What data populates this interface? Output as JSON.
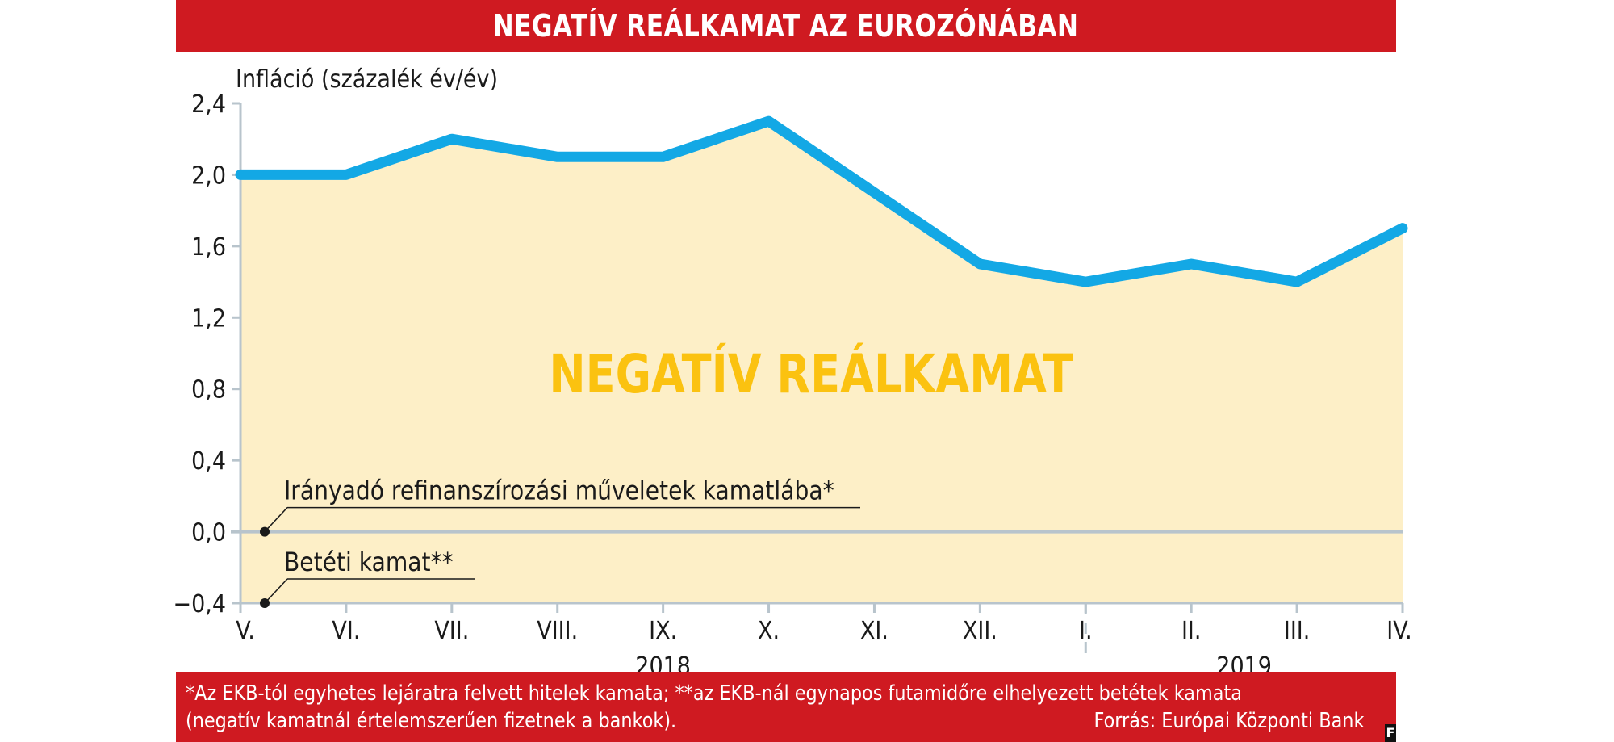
{
  "header": {
    "title": "NEGATÍV REÁLKAMAT AZ EUROZÓNÁBAN"
  },
  "colors": {
    "header_bg": "#cf1a21",
    "line": "#13a8e5",
    "area_fill": "#fdefc7",
    "big_label": "#fbc210",
    "axis": "#b8c4cc"
  },
  "chart_data": {
    "type": "line",
    "ylabel": "Infláció (százalék év/év)",
    "ylim": [
      -0.4,
      2.4
    ],
    "yticks": [
      "2,4",
      "2,0",
      "1,6",
      "1,2",
      "0,8",
      "0,4",
      "0,0",
      "−0,4"
    ],
    "ytick_values": [
      2.4,
      2.0,
      1.6,
      1.2,
      0.8,
      0.4,
      0.0,
      -0.4
    ],
    "categories": [
      "V.",
      "VI.",
      "VII.",
      "VIII.",
      "IX.",
      "X.",
      "XI.",
      "XII.",
      "I.",
      "II.",
      "III.",
      "IV."
    ],
    "years": [
      "2018",
      "2019"
    ],
    "series": [
      {
        "values": [
          2.0,
          2.0,
          2.2,
          2.1,
          2.1,
          2.3,
          1.9,
          1.5,
          1.4,
          1.5,
          1.4,
          1.7
        ]
      }
    ],
    "area_label": "NEGATÍV REÁLKAMAT",
    "annotations": [
      {
        "text": "Irányadó refinanszírozási műveletek kamatlába*",
        "y": 0.0
      },
      {
        "text": "Betéti kamat**",
        "y": -0.4
      }
    ]
  },
  "footer": {
    "note_line1": "*Az EKB-tól egyhetes lejáratra felvett hitelek kamata; **az EKB-nál egynapos futamidőre elhelyezett betétek kamata",
    "note_line2": "(negatív kamatnál értelemszerűen fizetnek a bankok).",
    "source": "Forrás: Európai Központi Bank"
  },
  "logo": {
    "letter": "F"
  }
}
